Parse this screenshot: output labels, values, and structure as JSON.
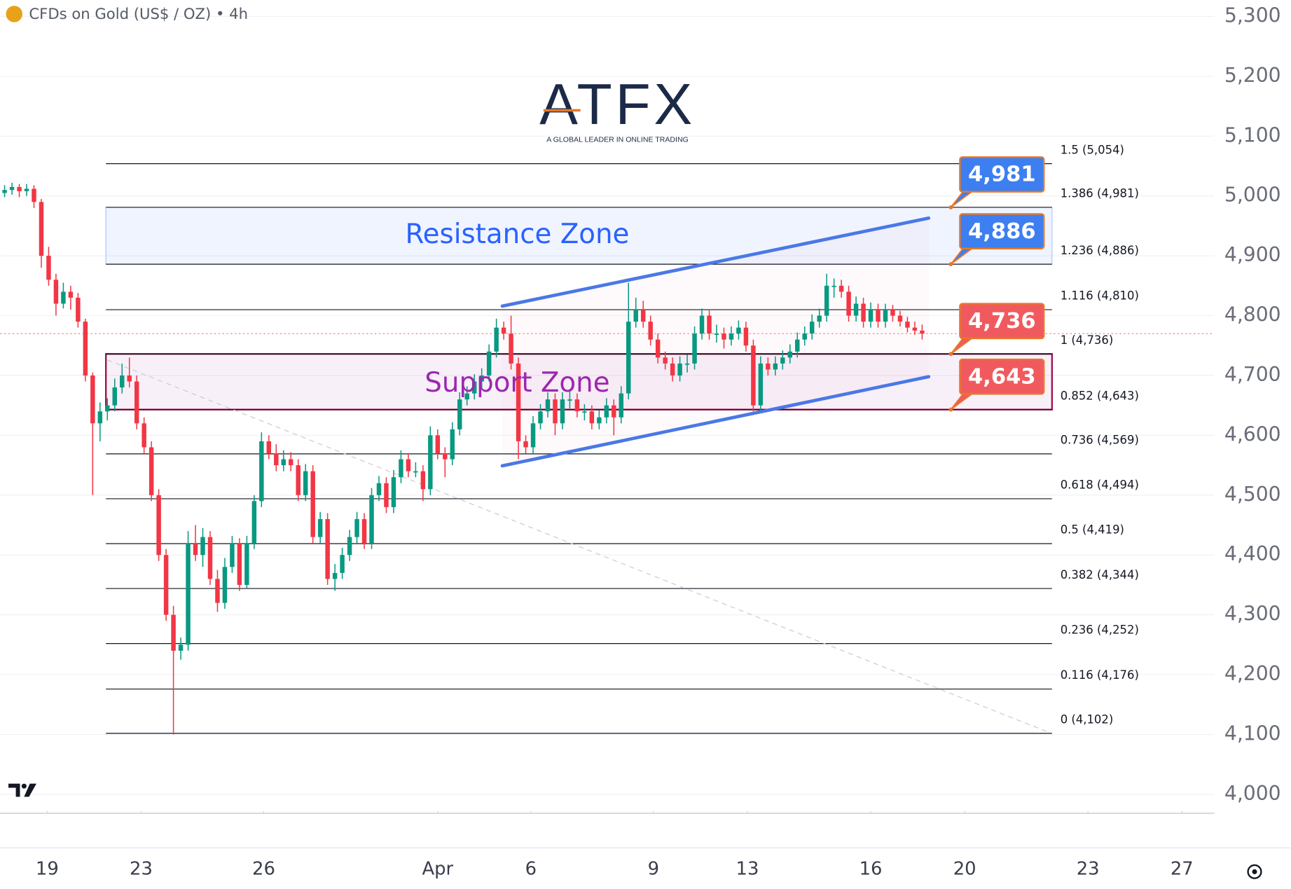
{
  "chart_data": {
    "type": "candlestick",
    "title": "CFDs on Gold (US$ / OZ) • 4h",
    "logo": {
      "name": "ATFX",
      "tagline": "A GLOBAL LEADER IN ONLINE TRADING"
    },
    "up_color": "#089981",
    "down_color": "#f23645",
    "ylim": [
      4000,
      5300
    ],
    "yticks": [
      {
        "value": 4000,
        "label": "4,000"
      },
      {
        "value": 4100,
        "label": "4,100"
      },
      {
        "value": 4200,
        "label": "4,200"
      },
      {
        "value": 4300,
        "label": "4,300"
      },
      {
        "value": 4400,
        "label": "4,400"
      },
      {
        "value": 4500,
        "label": "4,500"
      },
      {
        "value": 4600,
        "label": "4,600"
      },
      {
        "value": 4700,
        "label": "4,700"
      },
      {
        "value": 4800,
        "label": "4,800"
      },
      {
        "value": 4900,
        "label": "4,900"
      },
      {
        "value": 5000,
        "label": "5,000"
      },
      {
        "value": 5100,
        "label": "5,100"
      },
      {
        "value": 5200,
        "label": "5,200"
      },
      {
        "value": 5300,
        "label": "5,300"
      }
    ],
    "xlim": [
      -0.6,
      164.8
    ],
    "xticks": [
      {
        "value": 5.8,
        "label": "19"
      },
      {
        "value": 18.6,
        "label": "23"
      },
      {
        "value": 35.3,
        "label": "26"
      },
      {
        "value": 59.0,
        "label": "Apr"
      },
      {
        "value": 71.7,
        "label": "6"
      },
      {
        "value": 88.4,
        "label": "9"
      },
      {
        "value": 101.2,
        "label": "13"
      },
      {
        "value": 118.0,
        "label": "16"
      },
      {
        "value": 130.8,
        "label": "20"
      },
      {
        "value": 147.6,
        "label": "23"
      },
      {
        "value": 160.4,
        "label": "27"
      }
    ],
    "grid": true,
    "ohlc": [
      [
        5005,
        5018,
        4998,
        5010
      ],
      [
        5010,
        5022,
        5002,
        5015
      ],
      [
        5015,
        5020,
        4998,
        5008
      ],
      [
        5008,
        5020,
        5000,
        5012
      ],
      [
        5012,
        5018,
        4980,
        4990
      ],
      [
        4990,
        4995,
        4880,
        4900
      ],
      [
        4900,
        4915,
        4850,
        4860
      ],
      [
        4860,
        4870,
        4800,
        4820
      ],
      [
        4820,
        4855,
        4812,
        4840
      ],
      [
        4840,
        4850,
        4810,
        4830
      ],
      [
        4830,
        4838,
        4780,
        4790
      ],
      [
        4790,
        4795,
        4690,
        4700
      ],
      [
        4700,
        4705,
        4500,
        4620
      ],
      [
        4620,
        4655,
        4590,
        4640
      ],
      [
        4640,
        4662,
        4625,
        4650
      ],
      [
        4650,
        4695,
        4640,
        4680
      ],
      [
        4680,
        4720,
        4670,
        4700
      ],
      [
        4700,
        4730,
        4680,
        4690
      ],
      [
        4690,
        4700,
        4610,
        4620
      ],
      [
        4620,
        4630,
        4570,
        4580
      ],
      [
        4580,
        4590,
        4490,
        4500
      ],
      [
        4500,
        4510,
        4390,
        4400
      ],
      [
        4400,
        4410,
        4290,
        4300
      ],
      [
        4300,
        4315,
        4100,
        4240
      ],
      [
        4240,
        4262,
        4225,
        4250
      ],
      [
        4250,
        4440,
        4240,
        4420
      ],
      [
        4420,
        4450,
        4390,
        4400
      ],
      [
        4400,
        4445,
        4380,
        4430
      ],
      [
        4430,
        4440,
        4350,
        4360
      ],
      [
        4360,
        4375,
        4305,
        4320
      ],
      [
        4320,
        4395,
        4310,
        4380
      ],
      [
        4380,
        4432,
        4370,
        4420
      ],
      [
        4420,
        4428,
        4340,
        4350
      ],
      [
        4350,
        4432,
        4345,
        4420
      ],
      [
        4420,
        4500,
        4410,
        4490
      ],
      [
        4490,
        4605,
        4480,
        4590
      ],
      [
        4590,
        4600,
        4560,
        4570
      ],
      [
        4570,
        4585,
        4540,
        4550
      ],
      [
        4550,
        4575,
        4540,
        4560
      ],
      [
        4560,
        4572,
        4540,
        4550
      ],
      [
        4550,
        4560,
        4490,
        4500
      ],
      [
        4500,
        4552,
        4490,
        4540
      ],
      [
        4540,
        4550,
        4420,
        4430
      ],
      [
        4430,
        4472,
        4420,
        4460
      ],
      [
        4460,
        4470,
        4350,
        4360
      ],
      [
        4360,
        4385,
        4340,
        4370
      ],
      [
        4370,
        4412,
        4360,
        4400
      ],
      [
        4400,
        4442,
        4390,
        4430
      ],
      [
        4430,
        4472,
        4420,
        4460
      ],
      [
        4460,
        4470,
        4410,
        4420
      ],
      [
        4420,
        4512,
        4410,
        4500
      ],
      [
        4500,
        4532,
        4490,
        4520
      ],
      [
        4520,
        4530,
        4470,
        4480
      ],
      [
        4480,
        4542,
        4470,
        4530
      ],
      [
        4530,
        4575,
        4520,
        4560
      ],
      [
        4560,
        4570,
        4530,
        4540
      ],
      [
        4540,
        4555,
        4530,
        4540
      ],
      [
        4540,
        4550,
        4490,
        4510
      ],
      [
        4510,
        4615,
        4500,
        4600
      ],
      [
        4600,
        4610,
        4560,
        4570
      ],
      [
        4570,
        4580,
        4530,
        4560
      ],
      [
        4560,
        4622,
        4550,
        4610
      ],
      [
        4610,
        4672,
        4600,
        4660
      ],
      [
        4660,
        4682,
        4650,
        4670
      ],
      [
        4670,
        4702,
        4660,
        4690
      ],
      [
        4690,
        4712,
        4680,
        4700
      ],
      [
        4700,
        4752,
        4690,
        4740
      ],
      [
        4740,
        4795,
        4730,
        4780
      ],
      [
        4780,
        4790,
        4760,
        4770
      ],
      [
        4770,
        4800,
        4710,
        4720
      ],
      [
        4720,
        4730,
        4560,
        4590
      ],
      [
        4590,
        4600,
        4570,
        4580
      ],
      [
        4580,
        4632,
        4570,
        4620
      ],
      [
        4620,
        4652,
        4610,
        4640
      ],
      [
        4640,
        4672,
        4630,
        4660
      ],
      [
        4660,
        4670,
        4600,
        4620
      ],
      [
        4620,
        4672,
        4610,
        4660
      ],
      [
        4660,
        4675,
        4645,
        4660
      ],
      [
        4660,
        4670,
        4630,
        4640
      ],
      [
        4640,
        4652,
        4625,
        4640
      ],
      [
        4640,
        4650,
        4610,
        4620
      ],
      [
        4620,
        4642,
        4610,
        4630
      ],
      [
        4630,
        4662,
        4620,
        4650
      ],
      [
        4650,
        4660,
        4600,
        4630
      ],
      [
        4630,
        4682,
        4620,
        4670
      ],
      [
        4670,
        4855,
        4660,
        4790
      ],
      [
        4790,
        4830,
        4780,
        4810
      ],
      [
        4810,
        4825,
        4780,
        4790
      ],
      [
        4790,
        4800,
        4750,
        4760
      ],
      [
        4760,
        4770,
        4720,
        4730
      ],
      [
        4730,
        4740,
        4710,
        4720
      ],
      [
        4720,
        4730,
        4690,
        4700
      ],
      [
        4700,
        4732,
        4690,
        4720
      ],
      [
        4720,
        4735,
        4705,
        4720
      ],
      [
        4720,
        4782,
        4710,
        4770
      ],
      [
        4770,
        4812,
        4760,
        4800
      ],
      [
        4800,
        4810,
        4760,
        4770
      ],
      [
        4770,
        4785,
        4755,
        4770
      ],
      [
        4770,
        4780,
        4745,
        4760
      ],
      [
        4760,
        4782,
        4750,
        4770
      ],
      [
        4770,
        4792,
        4760,
        4780
      ],
      [
        4780,
        4790,
        4740,
        4750
      ],
      [
        4750,
        4760,
        4640,
        4650
      ],
      [
        4650,
        4732,
        4640,
        4720
      ],
      [
        4720,
        4730,
        4700,
        4710
      ],
      [
        4710,
        4732,
        4700,
        4720
      ],
      [
        4720,
        4742,
        4710,
        4730
      ],
      [
        4730,
        4752,
        4720,
        4740
      ],
      [
        4740,
        4772,
        4730,
        4760
      ],
      [
        4760,
        4782,
        4750,
        4770
      ],
      [
        4770,
        4802,
        4760,
        4790
      ],
      [
        4790,
        4812,
        4780,
        4800
      ],
      [
        4800,
        4870,
        4790,
        4850
      ],
      [
        4850,
        4862,
        4830,
        4850
      ],
      [
        4850,
        4860,
        4830,
        4840
      ],
      [
        4840,
        4850,
        4790,
        4800
      ],
      [
        4800,
        4832,
        4790,
        4820
      ],
      [
        4820,
        4830,
        4780,
        4790
      ],
      [
        4790,
        4822,
        4780,
        4810
      ],
      [
        4810,
        4820,
        4780,
        4790
      ],
      [
        4790,
        4820,
        4780,
        4810
      ],
      [
        4810,
        4818,
        4790,
        4800
      ],
      [
        4800,
        4808,
        4782,
        4790
      ],
      [
        4790,
        4798,
        4772,
        4780
      ],
      [
        4780,
        4790,
        4768,
        4775
      ],
      [
        4775,
        4785,
        4760,
        4770
      ]
    ],
    "fib_span": [
      13.8,
      142.7
    ],
    "fib_levels": [
      {
        "value": 5054,
        "label": "1.5 (5,054)"
      },
      {
        "value": 4981,
        "label": "1.386 (4,981)"
      },
      {
        "value": 4886,
        "label": "1.236 (4,886)"
      },
      {
        "value": 4810,
        "label": "1.116 (4,810)"
      },
      {
        "value": 4736,
        "label": "1 (4,736)"
      },
      {
        "value": 4643,
        "label": "0.852 (4,643)"
      },
      {
        "value": 4569,
        "label": "0.736 (4,569)"
      },
      {
        "value": 4494,
        "label": "0.618 (4,494)"
      },
      {
        "value": 4419,
        "label": "0.5 (4,419)"
      },
      {
        "value": 4344,
        "label": "0.382 (4,344)"
      },
      {
        "value": 4252,
        "label": "0.236 (4,252)"
      },
      {
        "value": 4176,
        "label": "0.116 (4,176)"
      },
      {
        "value": 4102,
        "label": "0 (4,102)"
      }
    ],
    "zones": [
      {
        "label": "Resistance Zone",
        "range": [
          4886,
          4981
        ],
        "color": "#2962ff"
      },
      {
        "label": "Support Zone",
        "range": [
          4643,
          4736
        ],
        "color": "#9c27b0"
      }
    ],
    "channel": [
      {
        "x": [
          67.8,
          125.9
        ],
        "y": [
          4816,
          4963
        ]
      },
      {
        "x": [
          67.8,
          125.9
        ],
        "y": [
          4549,
          4698
        ]
      }
    ],
    "channel_color": "#4a78e6",
    "trend_line": {
      "x": [
        14.0,
        142.4
      ],
      "y": [
        4726,
        4103
      ]
    },
    "callouts": [
      {
        "value": 4981,
        "label": "4,981",
        "color": "#3d7ff0"
      },
      {
        "value": 4886,
        "label": "4,886",
        "color": "#3d7ff0"
      },
      {
        "value": 4736,
        "label": "4,736",
        "color": "#f05a5e"
      },
      {
        "value": 4643,
        "label": "4,643",
        "color": "#f05a5e"
      }
    ]
  }
}
